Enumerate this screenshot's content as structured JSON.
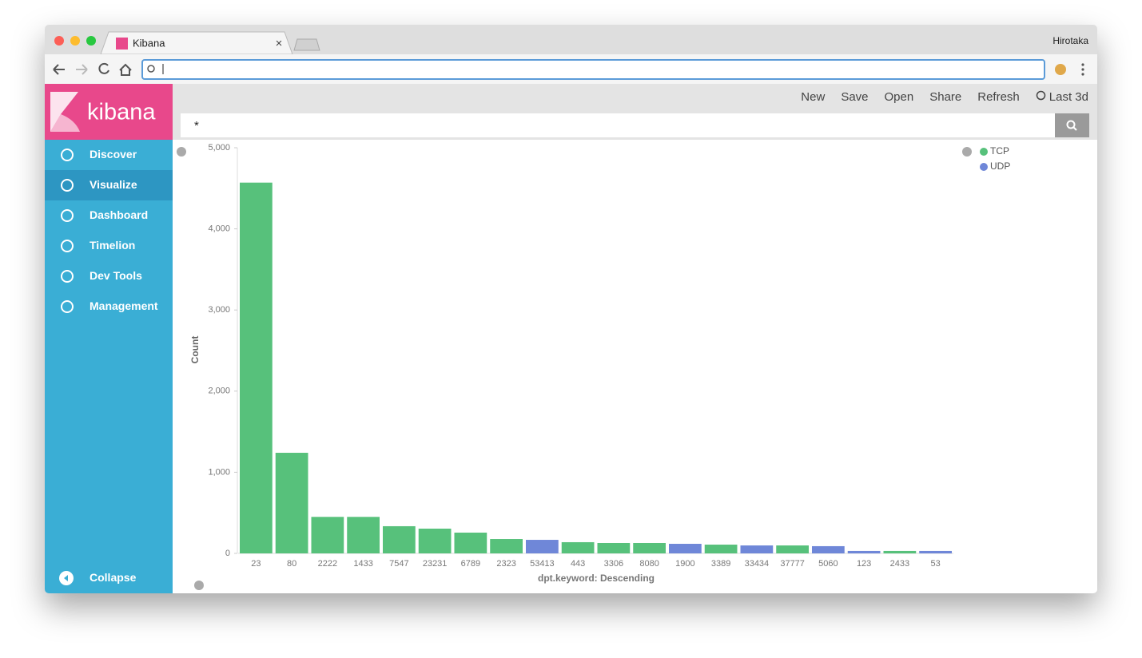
{
  "browser": {
    "tab_title": "Kibana",
    "profile": "Hirotaka"
  },
  "sidebar": {
    "logo": "kibana",
    "nav": [
      "Discover",
      "Visualize",
      "Dashboard",
      "Timelion",
      "Dev Tools",
      "Management"
    ],
    "active": "Visualize",
    "collapse": "Collapse"
  },
  "toolbar": {
    "actions": [
      "New",
      "Save",
      "Open",
      "Share",
      "Refresh"
    ],
    "time_range": "Last 3d"
  },
  "query": "*",
  "chart_data": {
    "type": "bar",
    "x_label": "dpt.keyword: Descending",
    "y_label": "Count",
    "categories": [
      "23",
      "80",
      "2222",
      "1433",
      "7547",
      "23231",
      "6789",
      "2323",
      "53413",
      "443",
      "3306",
      "8080",
      "1900",
      "3389",
      "33434",
      "37777",
      "5060",
      "123",
      "2433",
      "53"
    ],
    "series": [
      {
        "name": "TCP",
        "color": "#57c17b",
        "values": [
          4570,
          1240,
          450,
          450,
          335,
          305,
          256,
          177,
          null,
          138,
          128,
          128,
          null,
          108,
          null,
          98,
          null,
          null,
          30,
          null
        ]
      },
      {
        "name": "UDP",
        "color": "#6f87d8",
        "values": [
          null,
          null,
          null,
          null,
          null,
          null,
          null,
          null,
          167,
          null,
          null,
          null,
          118,
          null,
          98,
          null,
          89,
          30,
          null,
          30
        ]
      }
    ],
    "ylim": [
      0,
      5000
    ],
    "yticks": [
      0,
      {
        "value": 1000,
        "label": "1,000"
      },
      {
        "value": 2000,
        "label": "2,000"
      },
      {
        "value": 3000,
        "label": "3,000"
      },
      {
        "value": 4000,
        "label": "4,000"
      },
      {
        "value": 5000,
        "label": "5,000"
      }
    ],
    "legend": "top-right"
  }
}
